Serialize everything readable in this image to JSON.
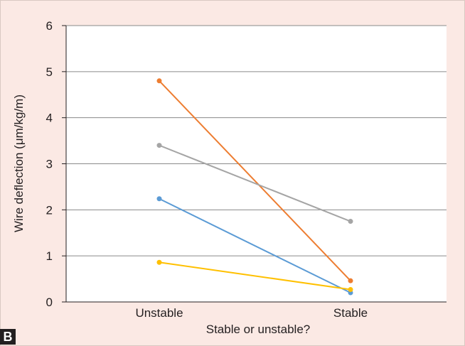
{
  "panel_label": "B",
  "chart_data": {
    "type": "line",
    "xlabel": "Stable or unstable?",
    "ylabel": "Wire deflection (μm/kg/m)",
    "categories": [
      "Unstable",
      "Stable"
    ],
    "ylim": [
      0,
      6
    ],
    "yticks": [
      0,
      1,
      2,
      3,
      4,
      5,
      6
    ],
    "grid": true,
    "series": [
      {
        "color": "#ed7d31",
        "values": [
          4.8,
          0.46
        ]
      },
      {
        "color": "#a5a5a5",
        "values": [
          3.4,
          1.75
        ]
      },
      {
        "color": "#5b9bd5",
        "values": [
          2.24,
          0.2
        ]
      },
      {
        "color": "#ffc000",
        "values": [
          0.86,
          0.27
        ]
      }
    ]
  }
}
